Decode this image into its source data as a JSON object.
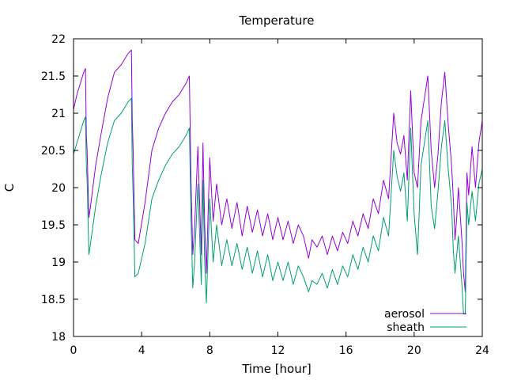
{
  "chart_data": {
    "type": "line",
    "title": "Temperature",
    "xlabel": "Time [hour]",
    "ylabel": "C",
    "xlim": [
      0,
      24
    ],
    "ylim": [
      18,
      22
    ],
    "xticks": [
      0,
      4,
      8,
      12,
      16,
      20,
      24
    ],
    "xtick_labels": [
      "0",
      "4",
      "8",
      "12",
      "16",
      "20",
      "24"
    ],
    "yticks": [
      18,
      18.5,
      19,
      19.5,
      20,
      20.5,
      21,
      21.5,
      22
    ],
    "ytick_labels": [
      "18",
      "18.5",
      "19",
      "19.5",
      "20",
      "20.5",
      "21",
      "21.5",
      "22"
    ],
    "grid": false,
    "legend_position": "bottom-right",
    "series": [
      {
        "name": "aerosol",
        "color": "#9400d3",
        "x": [
          0,
          0.2,
          0.4,
          0.6,
          0.7,
          0.75,
          0.8,
          0.9,
          1.0,
          1.3,
          1.6,
          2.0,
          2.4,
          2.8,
          3.2,
          3.4,
          3.45,
          3.5,
          3.6,
          3.8,
          4.2,
          4.6,
          5.0,
          5.4,
          5.8,
          6.2,
          6.6,
          6.8,
          6.9,
          7.0,
          7.1,
          7.3,
          7.5,
          7.6,
          7.7,
          7.8,
          8.0,
          8.2,
          8.4,
          8.7,
          9.0,
          9.3,
          9.6,
          9.9,
          10.2,
          10.5,
          10.8,
          11.1,
          11.4,
          11.7,
          12.0,
          12.3,
          12.6,
          12.9,
          13.2,
          13.5,
          13.8,
          14.0,
          14.3,
          14.6,
          14.9,
          15.2,
          15.5,
          15.8,
          16.1,
          16.4,
          16.7,
          17.0,
          17.3,
          17.6,
          17.9,
          18.2,
          18.5,
          18.8,
          19.0,
          19.2,
          19.4,
          19.6,
          19.8,
          20.0,
          20.2,
          20.4,
          20.6,
          20.8,
          21.0,
          21.2,
          21.4,
          21.6,
          21.8,
          22.0,
          22.2,
          22.3,
          22.4,
          22.5,
          22.6,
          22.8,
          22.9,
          23.0,
          23.1,
          23.2,
          23.4,
          23.6,
          23.8,
          24.0
        ],
        "y": [
          21.05,
          21.25,
          21.4,
          21.55,
          21.6,
          20.7,
          20.5,
          19.6,
          19.75,
          20.3,
          20.7,
          21.2,
          21.55,
          21.65,
          21.8,
          21.85,
          20.9,
          20.5,
          19.3,
          19.25,
          19.8,
          20.5,
          20.8,
          21.0,
          21.15,
          21.25,
          21.4,
          21.5,
          20.1,
          19.1,
          19.4,
          20.55,
          19.1,
          20.6,
          19.5,
          18.85,
          20.4,
          19.55,
          20.05,
          19.5,
          19.85,
          19.45,
          19.8,
          19.35,
          19.75,
          19.4,
          19.7,
          19.35,
          19.65,
          19.3,
          19.6,
          19.3,
          19.55,
          19.25,
          19.5,
          19.35,
          19.05,
          19.3,
          19.2,
          19.35,
          19.1,
          19.35,
          19.15,
          19.4,
          19.25,
          19.55,
          19.35,
          19.65,
          19.45,
          19.85,
          19.65,
          20.1,
          19.85,
          21.0,
          20.6,
          20.45,
          20.7,
          20.1,
          21.3,
          20.2,
          20.0,
          20.9,
          21.2,
          21.5,
          20.5,
          20.0,
          20.45,
          21.15,
          21.55,
          20.85,
          20.3,
          19.85,
          19.3,
          19.6,
          20.0,
          19.3,
          18.85,
          18.6,
          20.2,
          19.9,
          20.55,
          20.0,
          20.6,
          20.9
        ]
      },
      {
        "name": "sheath",
        "color": "#009e73",
        "x": [
          0,
          0.2,
          0.4,
          0.6,
          0.7,
          0.75,
          0.8,
          0.9,
          1.0,
          1.3,
          1.6,
          2.0,
          2.4,
          2.8,
          3.2,
          3.4,
          3.45,
          3.5,
          3.6,
          3.8,
          4.2,
          4.6,
          5.0,
          5.4,
          5.8,
          6.2,
          6.6,
          6.8,
          6.9,
          7.0,
          7.1,
          7.3,
          7.5,
          7.6,
          7.7,
          7.8,
          8.0,
          8.2,
          8.4,
          8.7,
          9.0,
          9.3,
          9.6,
          9.9,
          10.2,
          10.5,
          10.8,
          11.1,
          11.4,
          11.7,
          12.0,
          12.3,
          12.6,
          12.9,
          13.2,
          13.5,
          13.8,
          14.0,
          14.3,
          14.6,
          14.9,
          15.2,
          15.5,
          15.8,
          16.1,
          16.4,
          16.7,
          17.0,
          17.3,
          17.6,
          17.9,
          18.2,
          18.5,
          18.8,
          19.0,
          19.2,
          19.4,
          19.6,
          19.8,
          20.0,
          20.2,
          20.4,
          20.6,
          20.8,
          21.0,
          21.2,
          21.4,
          21.6,
          21.8,
          22.0,
          22.2,
          22.3,
          22.4,
          22.5,
          22.6,
          22.8,
          22.9,
          23.0,
          23.1,
          23.2,
          23.4,
          23.6,
          23.8,
          24.0
        ],
        "y": [
          20.45,
          20.6,
          20.75,
          20.9,
          20.95,
          20.3,
          20.1,
          19.1,
          19.25,
          19.75,
          20.15,
          20.6,
          20.9,
          21.0,
          21.15,
          21.2,
          20.3,
          19.9,
          18.8,
          18.85,
          19.25,
          19.85,
          20.1,
          20.3,
          20.45,
          20.55,
          20.7,
          20.8,
          19.6,
          18.65,
          18.95,
          20.05,
          18.7,
          20.1,
          19.0,
          18.45,
          19.85,
          19.0,
          19.5,
          18.95,
          19.3,
          18.95,
          19.25,
          18.9,
          19.2,
          18.85,
          19.15,
          18.8,
          19.1,
          18.75,
          19.0,
          18.75,
          19.0,
          18.7,
          18.95,
          18.8,
          18.6,
          18.75,
          18.7,
          18.85,
          18.65,
          18.9,
          18.7,
          18.95,
          18.8,
          19.1,
          18.9,
          19.2,
          19.0,
          19.35,
          19.15,
          19.6,
          19.35,
          20.5,
          20.15,
          19.95,
          20.2,
          19.55,
          20.8,
          19.65,
          19.1,
          20.3,
          20.6,
          20.9,
          19.75,
          19.45,
          19.95,
          20.55,
          20.9,
          20.25,
          19.75,
          19.15,
          18.85,
          19.1,
          19.35,
          18.7,
          18.3,
          18.3,
          19.8,
          19.5,
          19.95,
          19.55,
          20.05,
          20.25
        ]
      }
    ]
  }
}
